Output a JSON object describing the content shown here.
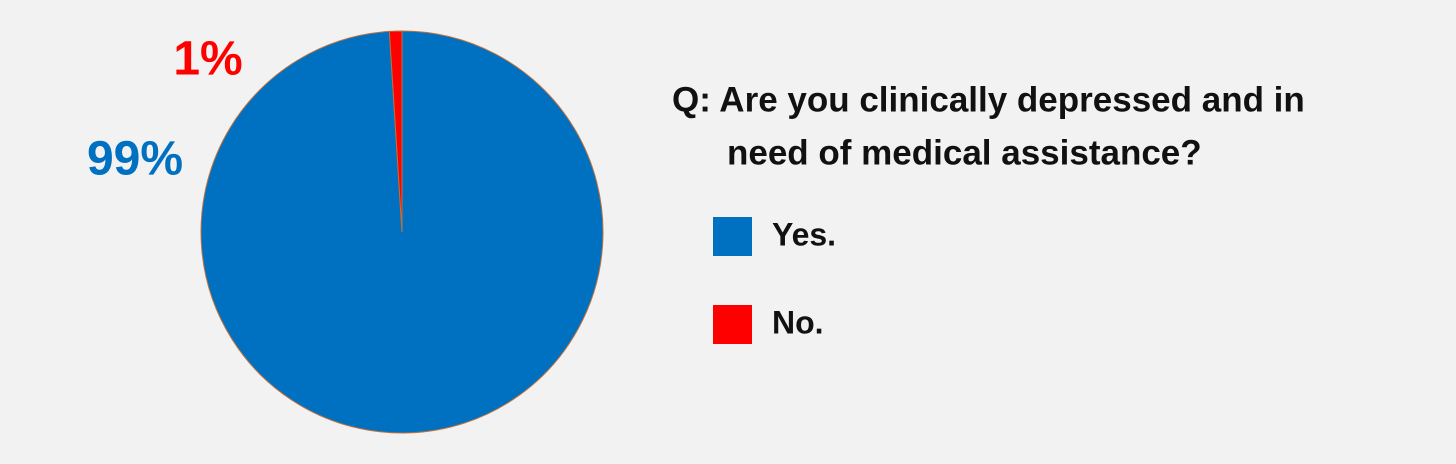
{
  "chart_data": {
    "type": "pie",
    "title": [
      "Q: Are you clinically depressed and in",
      "need of medical assistance?"
    ],
    "categories": [
      "Yes.",
      "No."
    ],
    "values": [
      99,
      1
    ],
    "value_labels": [
      "99%",
      "1%"
    ],
    "colors": [
      "#0070c0",
      "#ff0000"
    ],
    "legend": "right"
  }
}
